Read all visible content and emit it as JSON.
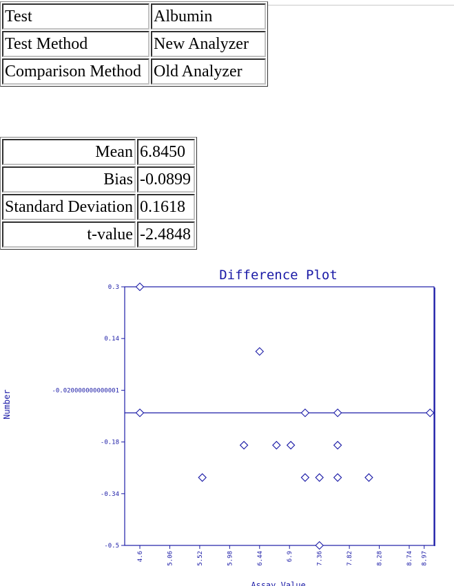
{
  "info_table": {
    "rows": [
      {
        "label": "Test",
        "value": "Albumin"
      },
      {
        "label": "Test Method",
        "value": "New Analyzer"
      },
      {
        "label": "Comparison Method",
        "value": "Old Analyzer"
      }
    ]
  },
  "stats_table": {
    "rows": [
      {
        "label": "Mean",
        "value": "6.8450"
      },
      {
        "label": "Bias",
        "value": "-0.0899"
      },
      {
        "label": "Standard Deviation",
        "value": "0.1618"
      },
      {
        "label": "t-value",
        "value": "-2.4848"
      }
    ]
  },
  "chart_data": {
    "type": "scatter",
    "title": "Difference Plot",
    "xlabel": "Assay Value",
    "ylabel": "Number",
    "xlim": [
      4.6,
      9.1
    ],
    "ylim": [
      -0.5,
      0.3
    ],
    "x_ticks": [
      {
        "value": 4.6,
        "label": "4.6"
      },
      {
        "value": 5.06,
        "label": "5.06"
      },
      {
        "value": 5.52,
        "label": "5.52"
      },
      {
        "value": 5.98,
        "label": "5.98"
      },
      {
        "value": 6.44,
        "label": "6.44"
      },
      {
        "value": 6.9,
        "label": "6.9"
      },
      {
        "value": 7.36,
        "label": "7.36"
      },
      {
        "value": 7.82,
        "label": "7.82"
      },
      {
        "value": 8.28,
        "label": "8.28"
      },
      {
        "value": 8.74,
        "label": "8.74"
      },
      {
        "value": 8.97,
        "label": "8.97"
      }
    ],
    "y_ticks": [
      {
        "value": 0.3,
        "label": "0.3"
      },
      {
        "value": 0.14,
        "label": "0.14"
      },
      {
        "value": -0.02,
        "label": "-0.020000000000001"
      },
      {
        "value": -0.18,
        "label": "-0.18"
      },
      {
        "value": -0.34,
        "label": "-0.34"
      },
      {
        "value": -0.5,
        "label": "-0.5"
      }
    ],
    "reference_line": -0.0899,
    "grid": false,
    "color": "#1a1aa6",
    "points": [
      {
        "x": 4.6,
        "y": 0.3
      },
      {
        "x": 4.6,
        "y": -0.0899
      },
      {
        "x": 5.56,
        "y": -0.29
      },
      {
        "x": 6.2,
        "y": -0.19
      },
      {
        "x": 6.44,
        "y": 0.1
      },
      {
        "x": 6.7,
        "y": -0.19
      },
      {
        "x": 6.92,
        "y": -0.19
      },
      {
        "x": 7.14,
        "y": -0.29
      },
      {
        "x": 7.14,
        "y": -0.0899
      },
      {
        "x": 7.36,
        "y": -0.29
      },
      {
        "x": 7.36,
        "y": -0.5
      },
      {
        "x": 7.64,
        "y": -0.29
      },
      {
        "x": 7.64,
        "y": -0.19
      },
      {
        "x": 7.64,
        "y": -0.0899
      },
      {
        "x": 8.12,
        "y": -0.29
      },
      {
        "x": 9.06,
        "y": -0.0899
      }
    ]
  }
}
